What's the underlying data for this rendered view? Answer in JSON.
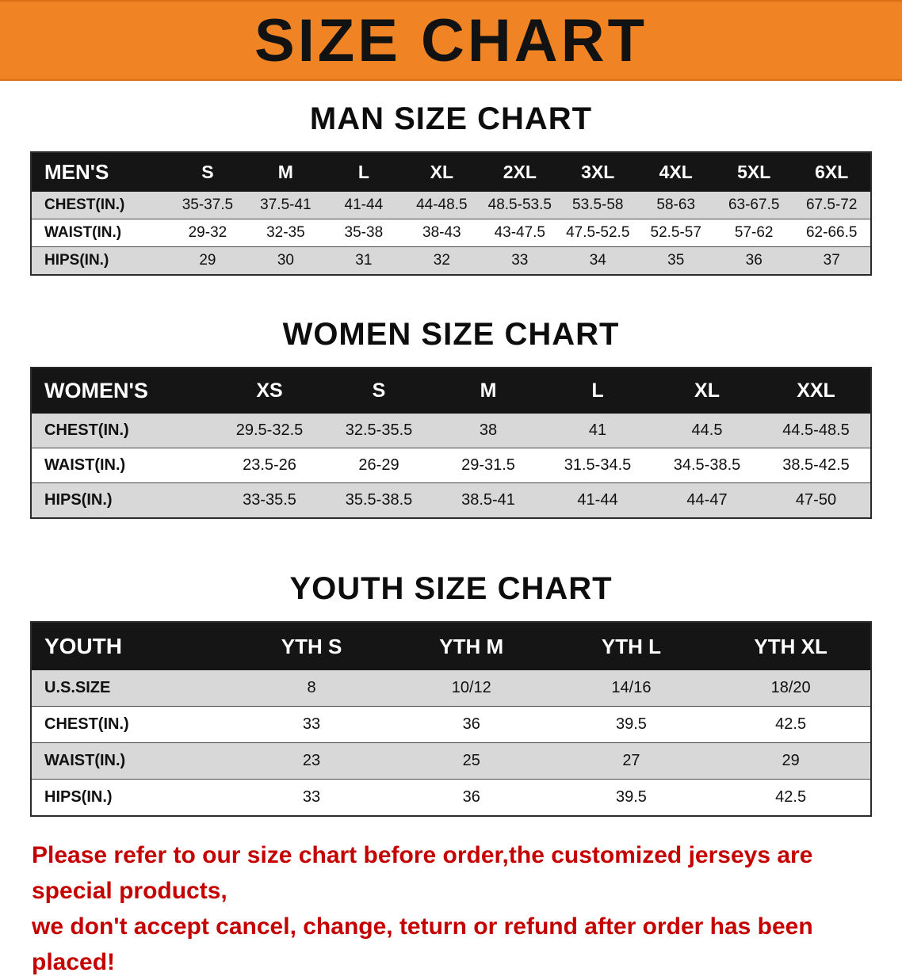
{
  "banner": {
    "title": "SIZE CHART",
    "background_color": "#f08424"
  },
  "colors": {
    "table_header_bg": "#151515",
    "shaded_row_bg": "#d8d8d8",
    "notice_text": "#c40000"
  },
  "sections": [
    {
      "id": "mens",
      "heading": "MAN SIZE CHART",
      "table": {
        "header": [
          "MEN'S",
          "S",
          "M",
          "L",
          "XL",
          "2XL",
          "3XL",
          "4XL",
          "5XL",
          "6XL"
        ],
        "rows": [
          [
            "CHEST(IN.)",
            "35-37.5",
            "37.5-41",
            "41-44",
            "44-48.5",
            "48.5-53.5",
            "53.5-58",
            "58-63",
            "63-67.5",
            "67.5-72"
          ],
          [
            "WAIST(IN.)",
            "29-32",
            "32-35",
            "35-38",
            "38-43",
            "43-47.5",
            "47.5-52.5",
            "52.5-57",
            "57-62",
            "62-66.5"
          ],
          [
            "HIPS(IN.)",
            "29",
            "30",
            "31",
            "32",
            "33",
            "34",
            "35",
            "36",
            "37"
          ]
        ]
      }
    },
    {
      "id": "womens",
      "heading": "WOMEN SIZE CHART",
      "table": {
        "header": [
          "WOMEN'S",
          "XS",
          "S",
          "M",
          "L",
          "XL",
          "XXL"
        ],
        "rows": [
          [
            "CHEST(IN.)",
            "29.5-32.5",
            "32.5-35.5",
            "38",
            "41",
            "44.5",
            "44.5-48.5"
          ],
          [
            "WAIST(IN.)",
            "23.5-26",
            "26-29",
            "29-31.5",
            "31.5-34.5",
            "34.5-38.5",
            "38.5-42.5"
          ],
          [
            "HIPS(IN.)",
            "33-35.5",
            "35.5-38.5",
            "38.5-41",
            "41-44",
            "44-47",
            "47-50"
          ]
        ]
      }
    },
    {
      "id": "youth",
      "heading": "YOUTH SIZE CHART",
      "table": {
        "header": [
          "YOUTH",
          "YTH S",
          "YTH M",
          "YTH L",
          "YTH XL"
        ],
        "rows": [
          [
            "U.S.SIZE",
            "8",
            "10/12",
            "14/16",
            "18/20"
          ],
          [
            "CHEST(IN.)",
            "33",
            "36",
            "39.5",
            "42.5"
          ],
          [
            "WAIST(IN.)",
            "23",
            "25",
            "27",
            "29"
          ],
          [
            "HIPS(IN.)",
            "33",
            "36",
            "39.5",
            "42.5"
          ]
        ]
      }
    }
  ],
  "footer": {
    "lines": [
      "Please refer to our size chart before order,the customized jerseys are special products,",
      "we don't accept cancel, change, teturn or refund after order has been placed!"
    ]
  }
}
